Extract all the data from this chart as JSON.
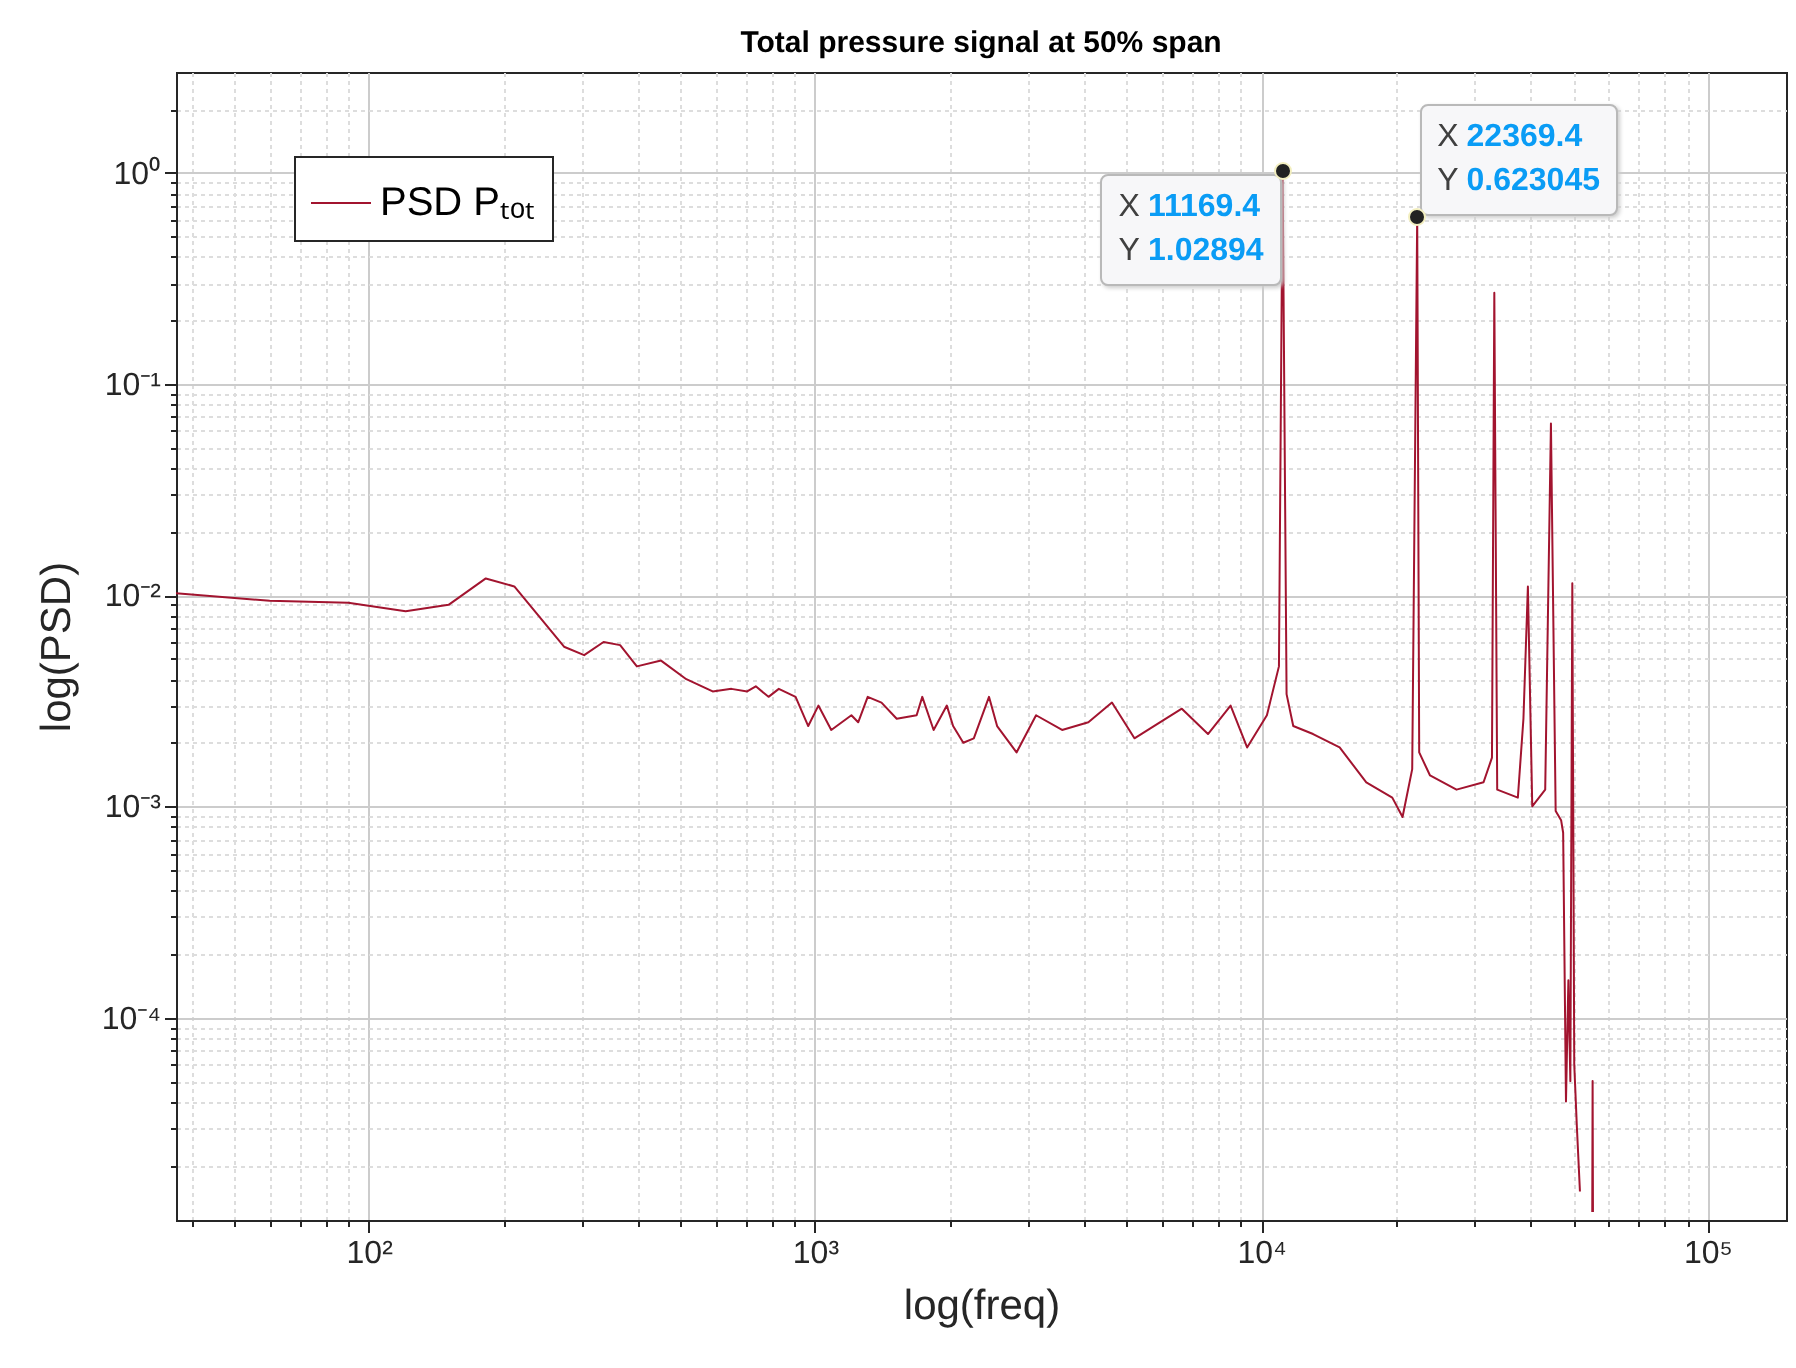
{
  "chart_data": {
    "type": "line",
    "title": "Total pressure signal at 50% span",
    "xlabel": "log(freq)",
    "ylabel": "log(PSD)",
    "log": "xy",
    "grid": true,
    "legend": "top left",
    "line_style": "solid",
    "xlim": [
      37,
      150000
    ],
    "ylim": [
      1.1e-05,
      3
    ],
    "xticks": [
      {
        "value": 40,
        "label": null
      },
      {
        "value": 50,
        "label": null
      },
      {
        "value": 60,
        "label": null
      },
      {
        "value": 70,
        "label": null
      },
      {
        "value": 80,
        "label": null
      },
      {
        "value": 90,
        "label": null
      },
      {
        "value": 100,
        "label": "10²"
      },
      {
        "value": 200,
        "label": null
      },
      {
        "value": 300,
        "label": null
      },
      {
        "value": 400,
        "label": null
      },
      {
        "value": 500,
        "label": null
      },
      {
        "value": 600,
        "label": null
      },
      {
        "value": 700,
        "label": null
      },
      {
        "value": 800,
        "label": null
      },
      {
        "value": 900,
        "label": null
      },
      {
        "value": 1000,
        "label": "10³"
      },
      {
        "value": 2000,
        "label": null
      },
      {
        "value": 3000,
        "label": null
      },
      {
        "value": 4000,
        "label": null
      },
      {
        "value": 5000,
        "label": null
      },
      {
        "value": 6000,
        "label": null
      },
      {
        "value": 7000,
        "label": null
      },
      {
        "value": 8000,
        "label": null
      },
      {
        "value": 9000,
        "label": null
      },
      {
        "value": 10000,
        "label": "10⁴"
      },
      {
        "value": 20000,
        "label": null
      },
      {
        "value": 30000,
        "label": null
      },
      {
        "value": 40000,
        "label": null
      },
      {
        "value": 50000,
        "label": null
      },
      {
        "value": 60000,
        "label": null
      },
      {
        "value": 70000,
        "label": null
      },
      {
        "value": 80000,
        "label": null
      },
      {
        "value": 90000,
        "label": null
      },
      {
        "value": 100000,
        "label": "10⁵"
      }
    ],
    "yticks": [
      {
        "value": 2e-05,
        "label": null
      },
      {
        "value": 3e-05,
        "label": null
      },
      {
        "value": 4e-05,
        "label": null
      },
      {
        "value": 5e-05,
        "label": null
      },
      {
        "value": 6e-05,
        "label": null
      },
      {
        "value": 7e-05,
        "label": null
      },
      {
        "value": 8e-05,
        "label": null
      },
      {
        "value": 9e-05,
        "label": null
      },
      {
        "value": 0.0001,
        "label": "10⁻⁴"
      },
      {
        "value": 0.0002,
        "label": null
      },
      {
        "value": 0.0003,
        "label": null
      },
      {
        "value": 0.0004,
        "label": null
      },
      {
        "value": 0.0005,
        "label": null
      },
      {
        "value": 0.0006,
        "label": null
      },
      {
        "value": 0.0007,
        "label": null
      },
      {
        "value": 0.0008,
        "label": null
      },
      {
        "value": 0.0009,
        "label": null
      },
      {
        "value": 0.001,
        "label": "10⁻³"
      },
      {
        "value": 0.002,
        "label": null
      },
      {
        "value": 0.003,
        "label": null
      },
      {
        "value": 0.004,
        "label": null
      },
      {
        "value": 0.005,
        "label": null
      },
      {
        "value": 0.006,
        "label": null
      },
      {
        "value": 0.007,
        "label": null
      },
      {
        "value": 0.008,
        "label": null
      },
      {
        "value": 0.009,
        "label": null
      },
      {
        "value": 0.01,
        "label": "10⁻²"
      },
      {
        "value": 0.02,
        "label": null
      },
      {
        "value": 0.03,
        "label": null
      },
      {
        "value": 0.04,
        "label": null
      },
      {
        "value": 0.05,
        "label": null
      },
      {
        "value": 0.06,
        "label": null
      },
      {
        "value": 0.07,
        "label": null
      },
      {
        "value": 0.08,
        "label": null
      },
      {
        "value": 0.09,
        "label": null
      },
      {
        "value": 0.1,
        "label": "10⁻¹"
      },
      {
        "value": 0.2,
        "label": null
      },
      {
        "value": 0.3,
        "label": null
      },
      {
        "value": 0.4,
        "label": null
      },
      {
        "value": 0.5,
        "label": null
      },
      {
        "value": 0.6,
        "label": null
      },
      {
        "value": 0.7,
        "label": null
      },
      {
        "value": 0.8,
        "label": null
      },
      {
        "value": 0.9,
        "label": null
      },
      {
        "value": 1,
        "label": "10⁰"
      },
      {
        "value": 2,
        "label": null
      }
    ],
    "x": [
      37,
      60,
      90,
      121,
      151,
      183,
      212,
      274,
      304,
      336,
      366,
      399,
      452,
      515,
      590,
      650,
      705,
      737,
      787,
      830,
      905,
      966,
      1018,
      1088,
      1207,
      1250,
      1313,
      1410,
      1525,
      1690,
      1740,
      1845,
      1975,
      2040,
      2150,
      2270,
      2455,
      2560,
      2830,
      3130,
      3580,
      4100,
      4630,
      5200,
      5750,
      6640,
      7600,
      8540,
      9300,
      10300,
      10960,
      11169.4,
      11400,
      11800,
      13070,
      14990,
      17200,
      19670,
      20740,
      21800,
      22369.4,
      22600,
      23900,
      27400,
      31500,
      32900,
      33300,
      33800,
      37600,
      38700,
      39600,
      40500,
      43300,
      44600,
      45700,
      47000,
      47500,
      48200,
      48800,
      49300,
      49800,
      50300,
      51000,
      51800,
      52500,
      53500,
      55200,
      55300,
      55400
    ],
    "series": [
      {
        "name": "PSD Pₜₒₜ",
        "color": "#a2142f",
        "values": [
          0.0102,
          0.0094,
          0.0092,
          0.0084,
          0.009,
          0.012,
          0.011,
          0.0057,
          0.0052,
          0.006,
          0.0058,
          0.0046,
          0.0049,
          0.004,
          0.0035,
          0.0036,
          0.0035,
          0.0037,
          0.0033,
          0.0036,
          0.0033,
          0.0024,
          0.003,
          0.0023,
          0.0027,
          0.0025,
          0.0033,
          0.0031,
          0.0026,
          0.0027,
          0.0033,
          0.0023,
          0.003,
          0.0024,
          0.002,
          0.0021,
          0.0033,
          0.0024,
          0.0018,
          0.0027,
          0.0023,
          0.0025,
          0.0031,
          0.0021,
          0.0024,
          0.0029,
          0.0022,
          0.003,
          0.0019,
          0.0027,
          0.0046,
          1.02894,
          0.0034,
          0.0024,
          0.0022,
          0.0019,
          0.0013,
          0.0011,
          0.00089,
          0.0015,
          0.623045,
          0.0018,
          0.0014,
          0.0012,
          0.0013,
          0.0017,
          0.27,
          0.0012,
          0.0011,
          0.0026,
          0.011,
          0.001,
          0.0012,
          0.065,
          0.00095,
          0.00086,
          0.00075,
          4e-05,
          0.00015,
          5e-05,
          0.0114,
          6e-05,
          3e-05,
          1.5e-05,
          null,
          null,
          1.2e-05,
          5e-05,
          1.2e-05
        ]
      }
    ],
    "annotations": [
      {
        "text": "X 11169.4\nY 1.02894",
        "x": 11169.4,
        "y": 1.02894
      },
      {
        "text": "X 22369.4\nY 0.623045",
        "x": 22369.4,
        "y": 0.623045
      }
    ]
  }
}
